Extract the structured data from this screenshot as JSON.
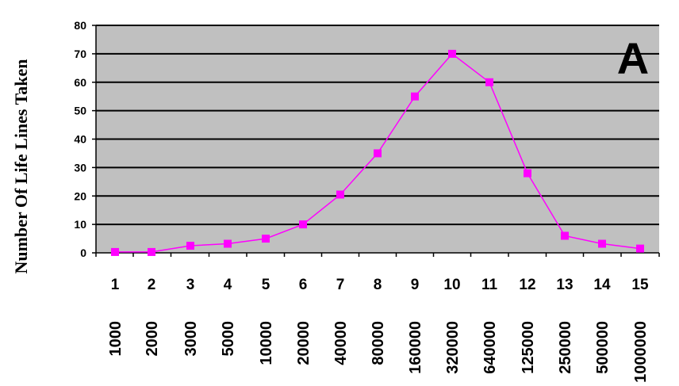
{
  "chart_data": {
    "type": "line",
    "ylabel": "Number Of Life Lines Taken",
    "panel_label": "A",
    "ylim": [
      0,
      80
    ],
    "yticks": [
      0,
      10,
      20,
      30,
      40,
      50,
      60,
      70,
      80
    ],
    "grid": true,
    "colors": {
      "plot_bg": "#c0c0c0",
      "series": "#ff00ff",
      "grid": "#000000"
    },
    "categories": [
      "1",
      "2",
      "3",
      "4",
      "5",
      "6",
      "7",
      "8",
      "9",
      "10",
      "11",
      "12",
      "13",
      "14",
      "15"
    ],
    "category_sublabels": [
      "1000",
      "2000",
      "3000",
      "5000",
      "10000",
      "20000",
      "40000",
      "80000",
      "160000",
      "320000",
      "640000",
      "125000",
      "250000",
      "500000",
      "1000000"
    ],
    "series": [
      {
        "values": [
          0.3,
          0.3,
          2.5,
          3.2,
          5,
          10,
          20.5,
          35,
          55,
          70,
          60,
          28,
          6,
          3.2,
          1.5
        ]
      }
    ]
  }
}
